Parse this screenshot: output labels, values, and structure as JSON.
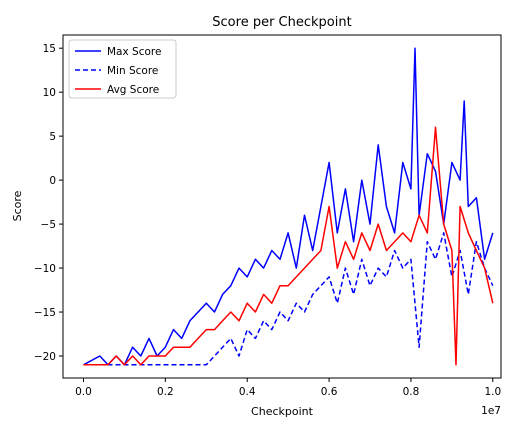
{
  "chart_data": {
    "type": "line",
    "title": "Score per Checkpoint",
    "xlabel": "Checkpoint",
    "ylabel": "Score",
    "x_offset_label": "1e7",
    "xlim": [
      -0.05,
      1.02
    ],
    "ylim": [
      -22.5,
      16.5
    ],
    "x_ticks": [
      0.0,
      0.2,
      0.4,
      0.6,
      0.8,
      1.0
    ],
    "x_tick_labels": [
      "0.0",
      "0.2",
      "0.4",
      "0.6",
      "0.8",
      "1.0"
    ],
    "y_ticks": [
      -20,
      -15,
      -10,
      -5,
      0,
      5,
      10,
      15
    ],
    "y_tick_labels": [
      "−20",
      "−15",
      "−10",
      "−5",
      "0",
      "5",
      "10",
      "15"
    ],
    "grid": false,
    "legend_position": "top-left",
    "series": [
      {
        "name": "Max Score",
        "color": "#0000ff",
        "style": "solid",
        "x": [
          0.0,
          0.04,
          0.06,
          0.08,
          0.1,
          0.12,
          0.14,
          0.16,
          0.18,
          0.2,
          0.22,
          0.24,
          0.26,
          0.28,
          0.3,
          0.32,
          0.34,
          0.36,
          0.38,
          0.4,
          0.42,
          0.44,
          0.46,
          0.48,
          0.5,
          0.52,
          0.54,
          0.56,
          0.58,
          0.6,
          0.62,
          0.64,
          0.66,
          0.68,
          0.7,
          0.72,
          0.74,
          0.76,
          0.78,
          0.8,
          0.81,
          0.82,
          0.84,
          0.86,
          0.88,
          0.9,
          0.92,
          0.93,
          0.94,
          0.96,
          0.98,
          1.0
        ],
        "values": [
          -21,
          -20,
          -21,
          -20,
          -21,
          -19,
          -20,
          -18,
          -20,
          -19,
          -17,
          -18,
          -16,
          -15,
          -14,
          -15,
          -13,
          -12,
          -10,
          -11,
          -9,
          -10,
          -8,
          -9,
          -6,
          -10,
          -4,
          -8,
          -3,
          2,
          -6,
          -1,
          -7,
          0,
          -5,
          4,
          -3,
          -6,
          2,
          -1,
          15,
          -4,
          3,
          1,
          -5,
          2,
          0,
          9,
          -3,
          -2,
          -9,
          -6
        ]
      },
      {
        "name": "Min Score",
        "color": "#0000ff",
        "style": "dashed",
        "x": [
          0.0,
          0.04,
          0.06,
          0.08,
          0.1,
          0.12,
          0.14,
          0.16,
          0.18,
          0.2,
          0.22,
          0.24,
          0.26,
          0.28,
          0.3,
          0.32,
          0.34,
          0.36,
          0.38,
          0.4,
          0.42,
          0.44,
          0.46,
          0.48,
          0.5,
          0.52,
          0.54,
          0.56,
          0.58,
          0.6,
          0.62,
          0.64,
          0.66,
          0.68,
          0.7,
          0.72,
          0.74,
          0.76,
          0.78,
          0.8,
          0.82,
          0.84,
          0.86,
          0.88,
          0.9,
          0.92,
          0.94,
          0.96,
          0.98,
          1.0
        ],
        "values": [
          -21,
          -21,
          -21,
          -21,
          -21,
          -21,
          -21,
          -21,
          -21,
          -21,
          -21,
          -21,
          -21,
          -21,
          -21,
          -20,
          -19,
          -18,
          -20,
          -17,
          -18,
          -16,
          -17,
          -15,
          -16,
          -14,
          -15,
          -13,
          -12,
          -11,
          -14,
          -10,
          -13,
          -9,
          -12,
          -10,
          -11,
          -8,
          -10,
          -9,
          -19,
          -7,
          -9,
          -6,
          -11,
          -8,
          -13,
          -7,
          -10,
          -12
        ]
      },
      {
        "name": "Avg Score",
        "color": "#ff0000",
        "style": "solid",
        "x": [
          0.0,
          0.04,
          0.06,
          0.08,
          0.1,
          0.12,
          0.14,
          0.16,
          0.18,
          0.2,
          0.22,
          0.24,
          0.26,
          0.28,
          0.3,
          0.32,
          0.34,
          0.36,
          0.38,
          0.4,
          0.42,
          0.44,
          0.46,
          0.48,
          0.5,
          0.52,
          0.54,
          0.56,
          0.58,
          0.6,
          0.62,
          0.64,
          0.66,
          0.68,
          0.7,
          0.72,
          0.74,
          0.76,
          0.78,
          0.8,
          0.82,
          0.84,
          0.86,
          0.88,
          0.9,
          0.91,
          0.92,
          0.94,
          0.96,
          0.98,
          1.0
        ],
        "values": [
          -21,
          -21,
          -21,
          -20,
          -21,
          -20,
          -21,
          -20,
          -20,
          -20,
          -19,
          -19,
          -19,
          -18,
          -17,
          -17,
          -16,
          -15,
          -16,
          -14,
          -15,
          -13,
          -14,
          -12,
          -12,
          -11,
          -10,
          -9,
          -8,
          -3,
          -10,
          -7,
          -9,
          -6,
          -8,
          -5,
          -8,
          -7,
          -6,
          -7,
          -4,
          -6,
          6,
          -5,
          -8,
          -21,
          -3,
          -6,
          -8,
          -10,
          -14
        ]
      }
    ]
  }
}
